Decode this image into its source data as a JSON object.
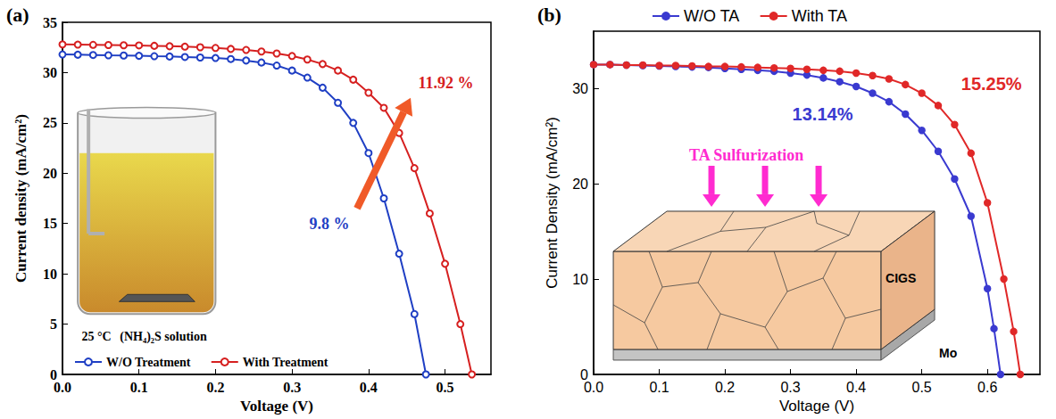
{
  "chart_data": [
    {
      "type": "line",
      "title": "(a)",
      "x_label": "Voltage (V)",
      "y_label": "Current density (mA/cm²)",
      "xlim": [
        0,
        0.56
      ],
      "xticks": [
        {
          "value": 0,
          "label": "0.0"
        },
        0.1,
        0.2,
        0.3,
        0.4,
        0.5
      ],
      "ylim": [
        0,
        35
      ],
      "yticks": [
        0,
        5,
        10,
        15,
        20,
        25,
        30,
        35
      ],
      "grid": false,
      "legend": "lower left",
      "series": [
        {
          "name": "W/O Treatment",
          "color": "#1f3fc4",
          "marker": "open circle",
          "line_style": "solid",
          "x": [
            0,
            0.02,
            0.04,
            0.06,
            0.08,
            0.1,
            0.12,
            0.14,
            0.16,
            0.18,
            0.2,
            0.22,
            0.24,
            0.26,
            0.28,
            0.3,
            0.32,
            0.34,
            0.36,
            0.38,
            0.4,
            0.42,
            0.44,
            0.46,
            0.475
          ],
          "values": [
            31.8,
            31.78,
            31.75,
            31.72,
            31.7,
            31.67,
            31.63,
            31.6,
            31.55,
            31.5,
            31.45,
            31.35,
            31.2,
            31.0,
            30.7,
            30.2,
            29.5,
            28.5,
            27.0,
            25.0,
            22.0,
            17.5,
            12.0,
            6.0,
            0
          ]
        },
        {
          "name": "With Treatment",
          "color": "#d62020",
          "marker": "open circle",
          "line_style": "solid",
          "x": [
            0,
            0.02,
            0.04,
            0.06,
            0.08,
            0.1,
            0.12,
            0.14,
            0.16,
            0.18,
            0.2,
            0.22,
            0.24,
            0.26,
            0.28,
            0.3,
            0.32,
            0.34,
            0.36,
            0.38,
            0.4,
            0.42,
            0.44,
            0.46,
            0.48,
            0.5,
            0.52,
            0.535
          ],
          "values": [
            32.8,
            32.78,
            32.76,
            32.74,
            32.72,
            32.7,
            32.66,
            32.62,
            32.58,
            32.52,
            32.45,
            32.35,
            32.25,
            32.1,
            31.9,
            31.65,
            31.3,
            30.85,
            30.2,
            29.3,
            28.0,
            26.5,
            24.0,
            20.5,
            16.0,
            11.0,
            5.0,
            0
          ]
        }
      ],
      "annotations": [
        {
          "text": "9.8 %",
          "series": "W/O Treatment"
        },
        {
          "text": "11.92 %",
          "series": "With Treatment"
        }
      ],
      "inset_texts": [
        "25 °C",
        "(NH₄)₂S solution"
      ]
    },
    {
      "type": "line",
      "title": "(b)",
      "x_label": "Voltage (V)",
      "y_label": "Current Density (mA/cm²)",
      "xlim": [
        0,
        0.68
      ],
      "xticks": [
        {
          "value": 0,
          "label": "0.0"
        },
        0.1,
        0.2,
        0.3,
        0.4,
        0.5,
        0.6
      ],
      "ylim": [
        0,
        36
      ],
      "yticks": [
        0,
        10,
        20,
        30
      ],
      "grid": false,
      "legend": "top",
      "series": [
        {
          "name": "W/O TA",
          "color": "#3a3ad0",
          "marker": "circle",
          "line_style": "solid",
          "x": [
            0,
            0.025,
            0.05,
            0.075,
            0.1,
            0.125,
            0.15,
            0.175,
            0.2,
            0.225,
            0.25,
            0.275,
            0.3,
            0.325,
            0.35,
            0.375,
            0.4,
            0.425,
            0.45,
            0.475,
            0.5,
            0.525,
            0.55,
            0.575,
            0.6,
            0.61,
            0.62
          ],
          "values": [
            32.5,
            32.5,
            32.45,
            32.4,
            32.35,
            32.3,
            32.25,
            32.2,
            32.1,
            32.0,
            31.9,
            31.8,
            31.6,
            31.4,
            31.1,
            30.7,
            30.2,
            29.5,
            28.6,
            27.3,
            25.6,
            23.4,
            20.5,
            16.6,
            9.0,
            4.8,
            0
          ]
        },
        {
          "name": "With TA",
          "color": "#e02828",
          "marker": "circle",
          "line_style": "solid",
          "x": [
            0,
            0.025,
            0.05,
            0.075,
            0.1,
            0.125,
            0.15,
            0.175,
            0.2,
            0.225,
            0.25,
            0.275,
            0.3,
            0.325,
            0.35,
            0.375,
            0.4,
            0.425,
            0.45,
            0.475,
            0.5,
            0.525,
            0.55,
            0.575,
            0.6,
            0.625,
            0.64,
            0.65
          ],
          "values": [
            32.5,
            32.5,
            32.45,
            32.45,
            32.4,
            32.4,
            32.35,
            32.3,
            32.3,
            32.25,
            32.2,
            32.15,
            32.1,
            32.0,
            31.9,
            31.8,
            31.6,
            31.35,
            31.0,
            30.4,
            29.5,
            28.2,
            26.2,
            23.2,
            18.0,
            10.0,
            4.5,
            0
          ]
        }
      ],
      "annotations": [
        {
          "text": "13.14%",
          "series": "W/O TA"
        },
        {
          "text": "15.25%",
          "series": "With TA"
        }
      ],
      "inset_texts": [
        "TA Sulfurization",
        "CIGS",
        "Mo"
      ]
    }
  ]
}
